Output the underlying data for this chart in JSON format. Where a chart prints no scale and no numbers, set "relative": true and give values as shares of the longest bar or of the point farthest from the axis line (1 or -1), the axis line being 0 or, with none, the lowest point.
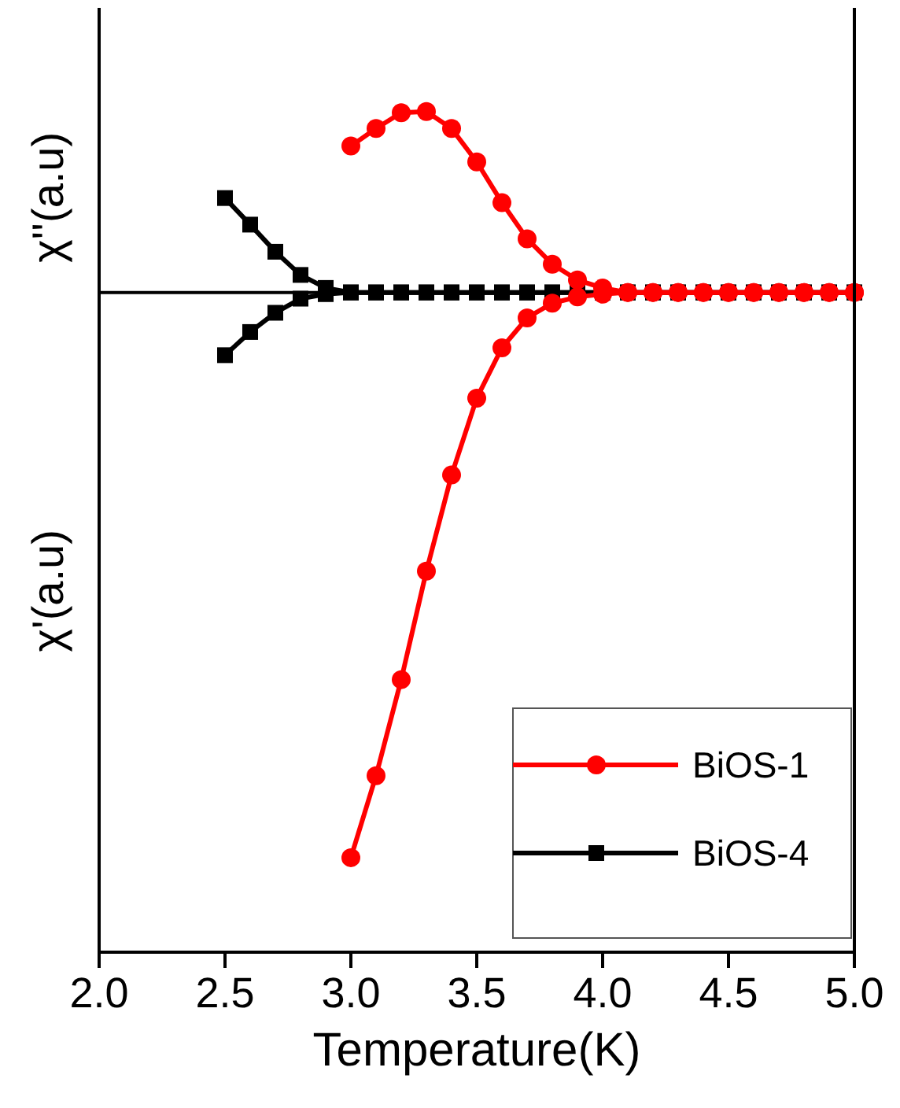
{
  "chart_data": {
    "type": "line",
    "relative": true,
    "xlabel": "Temperature(K)",
    "ylabel": "χ'(a.u)",
    "annotations": [
      "χ''(a.u)"
    ],
    "xlim": [
      2.0,
      5.0
    ],
    "xticks": [
      {
        "value": 2.0,
        "label": "2.0"
      },
      {
        "value": 2.5,
        "label": "2.5"
      },
      {
        "value": 3.0,
        "label": "3.0"
      },
      {
        "value": 3.5,
        "label": "3.5"
      },
      {
        "value": 4.0,
        "label": "4.0"
      },
      {
        "value": 4.5,
        "label": "4.5"
      },
      {
        "value": 5.0,
        "label": "5.0"
      }
    ],
    "tick_labels": "x",
    "grid": false,
    "legend": "bottom right",
    "series": [
      {
        "name": "BiOS-1",
        "color": "#ff0000",
        "marker": "circle",
        "x": [
          3.0,
          3.1,
          3.2,
          3.3,
          3.4,
          3.5,
          3.6,
          3.7,
          3.8,
          3.9,
          4.0,
          4.1,
          4.2,
          4.3,
          4.4,
          4.5,
          4.6,
          4.7,
          4.8,
          4.9,
          5.0
        ],
        "values": [
          0.259,
          0.29,
          0.318,
          0.32,
          0.29,
          0.231,
          0.159,
          0.095,
          0.05,
          0.022,
          0.008,
          0,
          0,
          0,
          0,
          0,
          0,
          0,
          0,
          0,
          0
        ]
      },
      {
        "color": "#ff0000",
        "marker": "circle",
        "x": [
          3.0,
          3.1,
          3.2,
          3.3,
          3.4,
          3.5,
          3.6,
          3.7,
          3.8,
          3.9,
          4.0,
          4.1,
          4.2,
          4.3,
          4.4,
          4.5,
          4.6,
          4.7,
          4.8,
          4.9,
          5.0
        ],
        "values": [
          -1,
          -0.855,
          -0.685,
          -0.493,
          -0.323,
          -0.187,
          -0.098,
          -0.045,
          -0.019,
          -0.008,
          -0.003,
          0,
          0,
          0,
          0,
          0,
          0,
          0,
          0,
          0,
          0
        ]
      },
      {
        "name": "BiOS-4",
        "color": "#000000",
        "marker": "square",
        "x": [
          2.5,
          2.6,
          2.7,
          2.8,
          2.9,
          3.0,
          3.1,
          3.2,
          3.3,
          3.4,
          3.5,
          3.6,
          3.7,
          3.8,
          3.9,
          4.0,
          4.1,
          4.2,
          4.3,
          4.4,
          4.5,
          4.6,
          4.7,
          4.8,
          4.9,
          5.0
        ],
        "values": [
          0.167,
          0.12,
          0.072,
          0.031,
          0.008,
          0,
          0,
          0,
          0,
          0,
          0,
          0,
          0,
          0,
          0,
          0,
          0,
          0,
          0,
          0,
          0,
          0,
          0,
          0,
          0,
          0
        ]
      },
      {
        "color": "#000000",
        "marker": "square",
        "x": [
          2.5,
          2.6,
          2.7,
          2.8,
          2.9,
          3.0,
          3.1,
          3.2,
          3.3,
          3.4,
          3.5,
          3.6,
          3.7,
          3.8,
          3.9,
          4.0,
          4.1,
          4.2,
          4.3,
          4.4,
          4.5,
          4.6,
          4.7,
          4.8,
          4.9,
          5.0
        ],
        "values": [
          -0.111,
          -0.07,
          -0.036,
          -0.011,
          -0.003,
          0,
          0,
          0,
          0,
          0,
          0,
          0,
          0,
          0,
          0,
          0,
          0,
          0,
          0,
          0,
          0,
          0,
          0,
          0,
          0,
          0
        ]
      }
    ]
  }
}
